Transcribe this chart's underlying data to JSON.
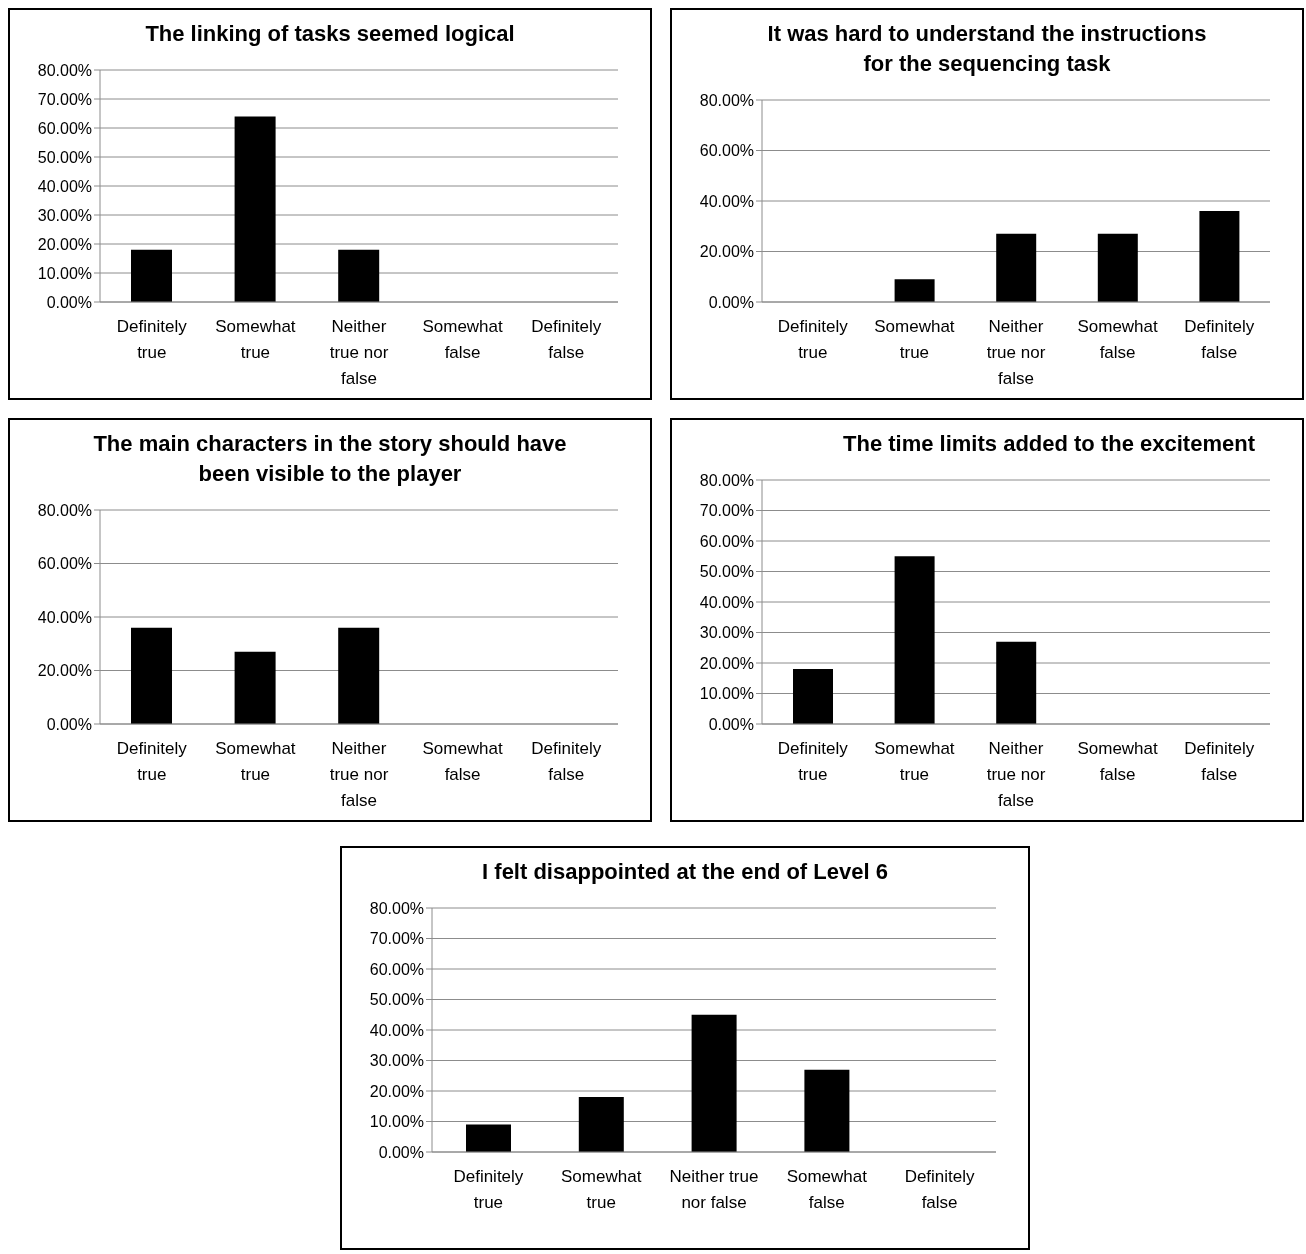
{
  "chart_data": [
    {
      "type": "bar",
      "title": "The linking of tasks seemed logical",
      "categories": [
        "Definitely true",
        "Somewhat true",
        "Neither true nor false",
        "Somewhat false",
        "Definitely false"
      ],
      "values": [
        18,
        64,
        18,
        0,
        0
      ],
      "color": "#000000",
      "ylim": [
        0,
        80
      ],
      "yticks": [
        {
          "value": 0,
          "label": "0.00%"
        },
        {
          "value": 10,
          "label": "10.00%"
        },
        {
          "value": 20,
          "label": "20.00%"
        },
        {
          "value": 30,
          "label": "30.00%"
        },
        {
          "value": 40,
          "label": "40.00%"
        },
        {
          "value": 50,
          "label": "50.00%"
        },
        {
          "value": 60,
          "label": "60.00%"
        },
        {
          "value": 70,
          "label": "70.00%"
        },
        {
          "value": 80,
          "label": "80.00%"
        }
      ],
      "grid": "y"
    },
    {
      "type": "bar",
      "title": "It was hard to understand the instructions for the sequencing task",
      "categories": [
        "Definitely true",
        "Somewhat true",
        "Neither true nor false",
        "Somewhat false",
        "Definitely false"
      ],
      "values": [
        0,
        9,
        27,
        27,
        36
      ],
      "color": "#000000",
      "ylim": [
        0,
        80
      ],
      "yticks": [
        {
          "value": 0,
          "label": "0.00%"
        },
        {
          "value": 20,
          "label": "20.00%"
        },
        {
          "value": 40,
          "label": "40.00%"
        },
        {
          "value": 60,
          "label": "60.00%"
        },
        {
          "value": 80,
          "label": "80.00%"
        }
      ],
      "grid": "y"
    },
    {
      "type": "bar",
      "title": "The main characters in the story should have been visible to the player",
      "categories": [
        "Definitely true",
        "Somewhat true",
        "Neither true nor false",
        "Somewhat false",
        "Definitely false"
      ],
      "values": [
        36,
        27,
        36,
        0,
        0
      ],
      "color": "#000000",
      "ylim": [
        0,
        80
      ],
      "yticks": [
        {
          "value": 0,
          "label": "0.00%"
        },
        {
          "value": 20,
          "label": "20.00%"
        },
        {
          "value": 40,
          "label": "40.00%"
        },
        {
          "value": 60,
          "label": "60.00%"
        },
        {
          "value": 80,
          "label": "80.00%"
        }
      ],
      "grid": "y"
    },
    {
      "type": "bar",
      "title": "The time limits added to the excitement",
      "categories": [
        "Definitely true",
        "Somewhat true",
        "Neither true nor false",
        "Somewhat false",
        "Definitely false"
      ],
      "values": [
        18,
        55,
        27,
        0,
        0
      ],
      "color": "#000000",
      "ylim": [
        0,
        80
      ],
      "yticks": [
        {
          "value": 0,
          "label": "0.00%"
        },
        {
          "value": 10,
          "label": "10.00%"
        },
        {
          "value": 20,
          "label": "20.00%"
        },
        {
          "value": 30,
          "label": "30.00%"
        },
        {
          "value": 40,
          "label": "40.00%"
        },
        {
          "value": 50,
          "label": "50.00%"
        },
        {
          "value": 60,
          "label": "60.00%"
        },
        {
          "value": 70,
          "label": "70.00%"
        },
        {
          "value": 80,
          "label": "80.00%"
        }
      ],
      "grid": "y"
    },
    {
      "type": "bar",
      "title": "I felt disappointed at the end of Level 6",
      "categories": [
        "Definitely true",
        "Somewhat true",
        "Neither true nor false",
        "Somewhat false",
        "Definitely false"
      ],
      "values": [
        9,
        18,
        45,
        27,
        0
      ],
      "color": "#000000",
      "ylim": [
        0,
        80
      ],
      "yticks": [
        {
          "value": 0,
          "label": "0.00%"
        },
        {
          "value": 10,
          "label": "10.00%"
        },
        {
          "value": 20,
          "label": "20.00%"
        },
        {
          "value": 30,
          "label": "30.00%"
        },
        {
          "value": 40,
          "label": "40.00%"
        },
        {
          "value": 50,
          "label": "50.00%"
        },
        {
          "value": 60,
          "label": "60.00%"
        },
        {
          "value": 70,
          "label": "70.00%"
        },
        {
          "value": 80,
          "label": "80.00%"
        }
      ],
      "grid": "y"
    }
  ]
}
